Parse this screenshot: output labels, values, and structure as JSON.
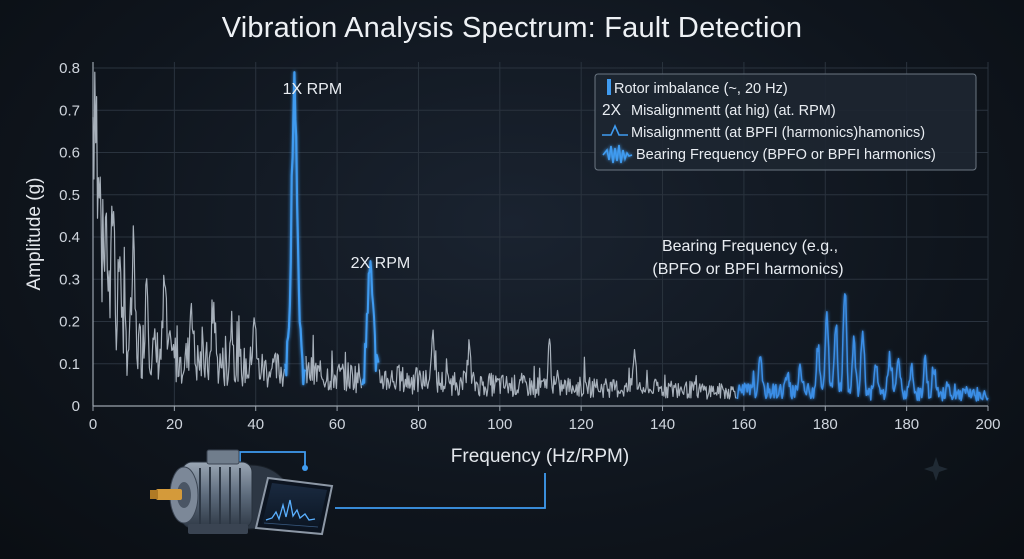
{
  "chart_data": {
    "type": "line",
    "title": "Vibration Analysis Spectrum: Fault Detection",
    "xlabel": "Frequency (Hz/RPM)",
    "ylabel": "Amplitude (g)",
    "xlim": [
      0,
      200
    ],
    "ylim": [
      0,
      0.8
    ],
    "x_ticks": [
      "0",
      "20",
      "40",
      "60",
      "80",
      "100",
      "120",
      "140",
      "160",
      "180",
      "180",
      "200"
    ],
    "y_ticks": [
      "0",
      "0.1",
      "0.2",
      "0.3",
      "0.4",
      "0.5",
      "0.6",
      "0.7",
      "0.8"
    ],
    "grid": true,
    "legend_position": "top-right",
    "legend": [
      {
        "marker": "",
        "text": "Rotor imbalance (~, 20 Hz)"
      },
      {
        "marker": "2X",
        "text": "Misalignmentt (at hig) (at. RPM)"
      },
      {
        "marker": "",
        "text": "Misalignmentt (at BPFI (harmonics)hamonics)"
      },
      {
        "marker": "",
        "text": "Bearing Frequency (BPFO or BPFI harmonics)"
      }
    ],
    "annotations": [
      {
        "text": "1X RPM",
        "x": 45,
        "y": 0.72
      },
      {
        "text": "2X RPM",
        "x": 62,
        "y": 0.31
      },
      {
        "text": "Bearing Frequency (e.g.,",
        "x": 168,
        "y": 0.29
      },
      {
        "text": "(BPFO or BPFI harmonics)",
        "x": 168,
        "y": 0.29
      }
    ],
    "series": [
      {
        "kind": "baseline",
        "x": [
          0,
          0.5,
          1,
          2,
          3,
          4,
          5,
          6,
          8,
          10,
          12,
          15,
          20,
          25,
          30,
          35,
          40,
          42,
          50,
          55,
          58,
          66,
          70,
          80,
          90,
          100,
          110,
          120,
          130,
          140,
          150,
          160,
          170,
          180,
          190,
          200
        ],
        "values": [
          0.6,
          0.5,
          0.35,
          0.3,
          0.24,
          0.2,
          0.18,
          0.16,
          0.15,
          0.14,
          0.13,
          0.12,
          0.11,
          0.1,
          0.095,
          0.09,
          0.085,
          0.085,
          0.075,
          0.07,
          0.07,
          0.065,
          0.06,
          0.055,
          0.05,
          0.045,
          0.045,
          0.04,
          0.04,
          0.035,
          0.035,
          0.035,
          0.03,
          0.03,
          0.025,
          0.025
        ]
      },
      {
        "kind": "peaks",
        "x": [
          0.5,
          1.5,
          3,
          4.5,
          6,
          9,
          12,
          16,
          22,
          27,
          31,
          36,
          45,
          62,
          76,
          84,
          102,
          121,
          149
        ],
        "values": [
          0.67,
          0.36,
          0.33,
          0.42,
          0.3,
          0.29,
          0.27,
          0.24,
          0.22,
          0.2,
          0.17,
          0.19,
          0.72,
          0.31,
          0.15,
          0.12,
          0.13,
          0.11,
          0.1
        ]
      },
      {
        "kind": "bearing",
        "x": [
          155,
          158,
          162,
          164,
          166,
          168,
          170,
          172,
          175,
          178,
          180,
          183,
          186,
          188,
          191,
          195
        ],
        "values": [
          0.07,
          0.1,
          0.15,
          0.22,
          0.2,
          0.29,
          0.17,
          0.19,
          0.11,
          0.13,
          0.12,
          0.1,
          0.12,
          0.1,
          0.07,
          0.05
        ]
      }
    ]
  }
}
